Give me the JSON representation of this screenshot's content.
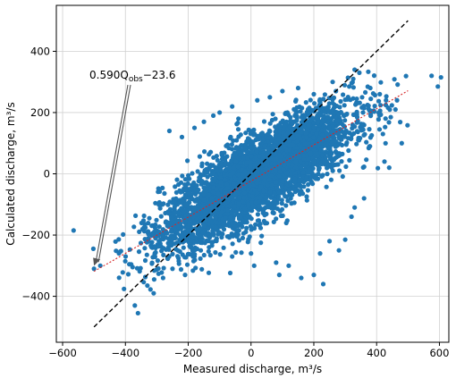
{
  "chart_data": {
    "type": "scatter",
    "xlabel": "Measured discharge, m³/s",
    "ylabel": "Calculated discharge, m³/s",
    "xlim": [
      -620,
      630
    ],
    "ylim": [
      -550,
      550
    ],
    "xticks": [
      -600,
      -400,
      -200,
      0,
      200,
      400,
      600
    ],
    "yticks": [
      -400,
      -200,
      0,
      200,
      400
    ],
    "grid": true,
    "colors": {
      "points": "#1f77b4",
      "fit_line": "#d62728",
      "identity_line": "#000000",
      "grid": "#d0d0d0"
    },
    "fit_line": {
      "slope": 0.59,
      "intercept": -23.6,
      "x_range": [
        -500,
        500
      ],
      "style": "dotted"
    },
    "identity_line": {
      "x_range": [
        -500,
        500
      ],
      "style": "dashed"
    },
    "annotation": {
      "text": "0.590Q_obs − 23.6",
      "main": "0.590Q",
      "sub": "obs",
      "rest": "−23.6",
      "points_to": [
        -500,
        -300
      ]
    },
    "cloud": {
      "center_slope": 0.59,
      "center_intercept": -23.6,
      "x_range": [
        -520,
        510
      ],
      "spread": 65,
      "count": 4200
    },
    "outliers": [
      [
        -565,
        -185
      ],
      [
        -500,
        -310
      ],
      [
        -480,
        -300
      ],
      [
        -370,
        -430
      ],
      [
        -360,
        -455
      ],
      [
        -330,
        -365
      ],
      [
        -310,
        -390
      ],
      [
        -280,
        -340
      ],
      [
        -250,
        -310
      ],
      [
        -230,
        -285
      ],
      [
        -210,
        -330
      ],
      [
        -180,
        -270
      ],
      [
        -160,
        -250
      ],
      [
        -60,
        -270
      ],
      [
        0,
        -260
      ],
      [
        10,
        -300
      ],
      [
        80,
        -290
      ],
      [
        90,
        -330
      ],
      [
        120,
        -300
      ],
      [
        160,
        -340
      ],
      [
        200,
        -330
      ],
      [
        230,
        -360
      ],
      [
        220,
        -260
      ],
      [
        250,
        -220
      ],
      [
        280,
        -250
      ],
      [
        300,
        -215
      ],
      [
        -260,
        140
      ],
      [
        -220,
        120
      ],
      [
        -180,
        150
      ],
      [
        -150,
        170
      ],
      [
        -120,
        190
      ],
      [
        -100,
        200
      ],
      [
        -60,
        220
      ],
      [
        -40,
        180
      ],
      [
        20,
        240
      ],
      [
        60,
        250
      ],
      [
        100,
        270
      ],
      [
        150,
        280
      ],
      [
        200,
        260
      ],
      [
        260,
        300
      ],
      [
        330,
        340
      ],
      [
        345,
        330
      ],
      [
        380,
        280
      ],
      [
        410,
        260
      ],
      [
        430,
        240
      ],
      [
        460,
        210
      ],
      [
        465,
        240
      ],
      [
        445,
        185
      ],
      [
        420,
        130
      ],
      [
        425,
        40
      ],
      [
        440,
        20
      ],
      [
        480,
        100
      ],
      [
        575,
        320
      ],
      [
        595,
        285
      ],
      [
        605,
        315
      ],
      [
        330,
        -110
      ],
      [
        360,
        -80
      ],
      [
        320,
        -140
      ]
    ]
  }
}
